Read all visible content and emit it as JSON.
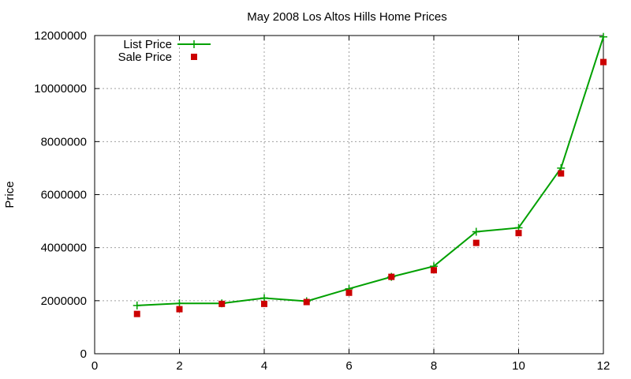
{
  "chart_data": {
    "type": "line",
    "title": "May 2008 Los Altos Hills Home Prices",
    "xlabel": "",
    "ylabel": "Price",
    "xlim": [
      0,
      12
    ],
    "ylim": [
      0,
      12000000
    ],
    "xticks": [
      0,
      2,
      4,
      6,
      8,
      10,
      12
    ],
    "yticks": [
      0,
      2000000,
      4000000,
      6000000,
      8000000,
      10000000,
      12000000
    ],
    "grid": true,
    "legend_position": "top-left",
    "series": [
      {
        "name": "List Price",
        "style": "line-with-plus-markers",
        "color": "#00a000",
        "x": [
          1,
          2,
          3,
          4,
          5,
          6,
          7,
          8,
          9,
          10,
          11,
          12
        ],
        "values": [
          1820000,
          1900000,
          1900000,
          2100000,
          1980000,
          2450000,
          2900000,
          3300000,
          4600000,
          4750000,
          7000000,
          11950000
        ]
      },
      {
        "name": "Sale Price",
        "style": "square-markers",
        "color": "#cc0000",
        "x": [
          1,
          2,
          3,
          4,
          5,
          6,
          7,
          8,
          9,
          10,
          11,
          12
        ],
        "values": [
          1500000,
          1680000,
          1880000,
          1880000,
          1950000,
          2300000,
          2900000,
          3150000,
          4180000,
          4550000,
          6800000,
          11000000
        ]
      }
    ]
  }
}
